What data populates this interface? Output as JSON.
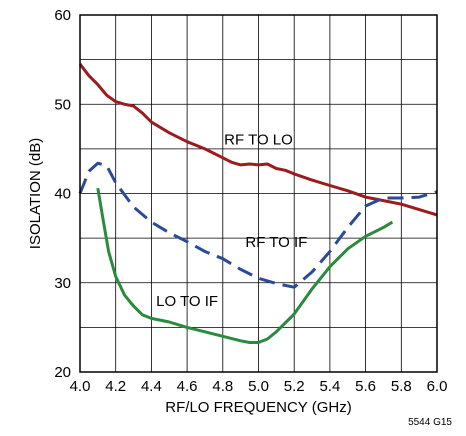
{
  "chart_data": {
    "type": "line",
    "xlabel": "RF/LO FREQUENCY (GHz)",
    "ylabel": "ISOLATION (dB)",
    "xlim": [
      4.0,
      6.0
    ],
    "ylim": [
      20,
      60
    ],
    "xticks": [
      "4.0",
      "4.2",
      "4.4",
      "4.6",
      "4.8",
      "5.0",
      "5.2",
      "5.4",
      "5.6",
      "5.8",
      "6.0"
    ],
    "yticks": [
      "20",
      "30",
      "40",
      "50",
      "60"
    ],
    "grid": true,
    "series": [
      {
        "name": "RF TO LO",
        "color": "#9b1b1f",
        "dash": "solid",
        "x": [
          4.0,
          4.05,
          4.1,
          4.15,
          4.2,
          4.25,
          4.3,
          4.35,
          4.4,
          4.5,
          4.6,
          4.7,
          4.8,
          4.85,
          4.9,
          4.95,
          5.0,
          5.05,
          5.1,
          5.15,
          5.2,
          5.3,
          5.4,
          5.5,
          5.6,
          5.7,
          5.8,
          5.9,
          6.0
        ],
        "y": [
          54.5,
          53.2,
          52.2,
          51.0,
          50.3,
          50.0,
          49.8,
          49.0,
          48.0,
          46.8,
          45.8,
          45.0,
          44.0,
          43.5,
          43.2,
          43.3,
          43.2,
          43.3,
          42.8,
          42.6,
          42.2,
          41.5,
          40.9,
          40.3,
          39.6,
          39.2,
          38.8,
          38.2,
          37.6
        ]
      },
      {
        "name": "RF TO IF",
        "color": "#2c4a9a",
        "dash": "long-dash",
        "x": [
          4.0,
          4.05,
          4.1,
          4.15,
          4.2,
          4.3,
          4.4,
          4.5,
          4.6,
          4.7,
          4.8,
          4.9,
          5.0,
          5.1,
          5.2,
          5.3,
          5.4,
          5.5,
          5.6,
          5.7,
          5.8,
          5.9,
          6.0
        ],
        "y": [
          40.0,
          42.5,
          43.4,
          43.1,
          41.2,
          38.5,
          36.8,
          35.6,
          34.6,
          33.5,
          32.7,
          31.5,
          30.5,
          29.9,
          29.5,
          31.2,
          33.5,
          36.2,
          38.6,
          39.5,
          39.5,
          39.6,
          40.2
        ]
      },
      {
        "name": "LO TO IF",
        "color": "#2a8a3e",
        "dash": "solid",
        "x": [
          4.1,
          4.13,
          4.16,
          4.2,
          4.25,
          4.3,
          4.35,
          4.4,
          4.5,
          4.6,
          4.7,
          4.8,
          4.9,
          4.95,
          5.0,
          5.05,
          5.1,
          5.2,
          5.3,
          5.4,
          5.5,
          5.6,
          5.7,
          5.75
        ],
        "y": [
          40.6,
          37.0,
          33.5,
          30.7,
          28.6,
          27.4,
          26.4,
          26.0,
          25.6,
          25.0,
          24.5,
          24.0,
          23.5,
          23.3,
          23.3,
          23.7,
          24.5,
          26.5,
          29.3,
          31.8,
          33.8,
          35.2,
          36.2,
          36.8
        ]
      }
    ],
    "annotations": [
      {
        "text": "RF TO LO",
        "x": 5.0,
        "y": 45.5
      },
      {
        "text": "RF TO IF",
        "x": 5.1,
        "y": 34.0
      },
      {
        "text": "LO TO IF",
        "x": 4.6,
        "y": 27.4
      }
    ]
  },
  "figure_id": "5544 G15"
}
